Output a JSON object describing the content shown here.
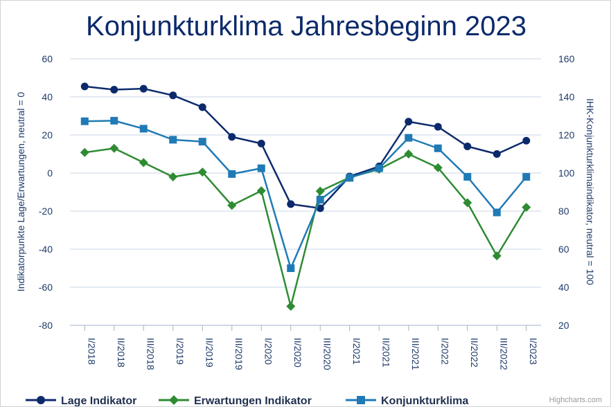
{
  "chart_data": {
    "type": "line",
    "title": "Konjunkturklima Jahresbeginn 2023",
    "categories": [
      "I/2018",
      "II/2018",
      "III/2018",
      "I/2019",
      "II/2019",
      "III/2019",
      "I/2020",
      "II/2020",
      "III/2020",
      "I/2021",
      "II/2021",
      "III/2021",
      "I/2022",
      "II/2022",
      "III/2022",
      "I/2023"
    ],
    "ylabel": "Indikatorpunkte Lage/Erwartungen, neutral = 0",
    "ylabel_right": "IHK-Konjunkturklimaindikator, neutral = 100",
    "ylim": [
      -80,
      60
    ],
    "ylim_right": [
      20,
      160
    ],
    "yticks": [
      "60",
      "40",
      "20",
      "0",
      "-20",
      "-40",
      "-60",
      "-80"
    ],
    "yticks_right": [
      "160",
      "140",
      "120",
      "100",
      "80",
      "60",
      "40",
      "20"
    ],
    "grid": true,
    "legend_position": "bottom",
    "series": [
      {
        "name": "Lage Indikator",
        "axis": "left",
        "color": "#0c2a6b",
        "marker": "circle",
        "values": [
          45.5,
          43.8,
          44.3,
          40.8,
          34.6,
          19.0,
          15.5,
          -16.3,
          -18.5,
          -1.8,
          3.5,
          27.0,
          24.3,
          14.0,
          10.0,
          17.0
        ]
      },
      {
        "name": "Erwartungen Indikator",
        "axis": "left",
        "color": "#2e8b32",
        "marker": "diamond",
        "values": [
          10.8,
          13.0,
          5.5,
          -2.0,
          0.5,
          -17.0,
          -9.3,
          -70.0,
          -9.5,
          -2.3,
          2.0,
          10.0,
          2.8,
          -15.6,
          -43.5,
          -18.0
        ]
      },
      {
        "name": "Konjunkturklima",
        "axis": "right",
        "color": "#1f7ab5",
        "marker": "square",
        "values": [
          127.2,
          127.5,
          123.3,
          117.5,
          116.5,
          99.5,
          102.5,
          50.0,
          86.0,
          97.5,
          102.5,
          118.5,
          113.0,
          98.0,
          79.3,
          98.0
        ]
      }
    ]
  },
  "credits": "Highcharts.com"
}
